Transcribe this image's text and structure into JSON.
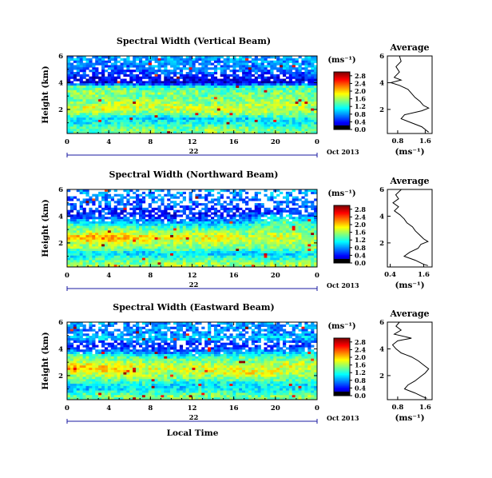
{
  "chart_data": [
    {
      "type": "heatmap",
      "title": "Spectral Width (Vertical Beam)",
      "ylabel": "Height (km)",
      "x_ticks": [
        "0",
        "4",
        "8",
        "12",
        "16",
        "20",
        "0"
      ],
      "xlim": [
        0,
        24
      ],
      "y_ticks": [
        "2",
        "4",
        "6"
      ],
      "ylim": [
        0.2,
        6
      ],
      "day_label": "22",
      "month_label": "Oct 2013",
      "colorbar": {
        "unit": "(ms⁻¹)",
        "ticks": [
          "0.0",
          "0.4",
          "0.8",
          "1.2",
          "1.6",
          "2.0",
          "2.4",
          "2.8"
        ],
        "range": [
          0,
          3.0
        ]
      },
      "noise_seed": 11,
      "rows": [
        {
          "h": 6.0,
          "v": [
            0.9,
            0.9,
            0.9,
            0.9,
            0.9,
            0.9,
            0.9,
            0.9
          ],
          "gap": 0.15
        },
        {
          "h": 5.5,
          "v": [
            0.8,
            0.7,
            0.8,
            0.8,
            0.7,
            0.8,
            0.8,
            0.8
          ],
          "gap": 0.15
        },
        {
          "h": 5.0,
          "v": [
            0.9,
            0.6,
            0.7,
            0.8,
            0.8,
            0.7,
            0.8,
            0.9
          ],
          "gap": 0.15
        },
        {
          "h": 4.6,
          "v": [
            0.5,
            0.4,
            0.5,
            0.6,
            0.5,
            0.5,
            0.5,
            0.6
          ],
          "gap": 0.25
        },
        {
          "h": 4.3,
          "v": [
            0.3,
            0.3,
            0.4,
            0.4,
            0.3,
            0.4,
            0.3,
            0.4
          ],
          "gap": 0.2
        },
        {
          "h": 4.0,
          "v": [
            0.2,
            0.2,
            0.3,
            0.2,
            0.3,
            0.2,
            0.3,
            0.3
          ],
          "gap": 0.0
        },
        {
          "h": 3.7,
          "v": [
            1.4,
            1.3,
            1.2,
            1.2,
            1.1,
            1.2,
            1.3,
            1.3
          ],
          "gap": 0.0
        },
        {
          "h": 3.3,
          "v": [
            1.5,
            1.6,
            1.5,
            1.6,
            1.5,
            1.4,
            1.5,
            1.4
          ],
          "gap": 0.0
        },
        {
          "h": 2.9,
          "v": [
            1.4,
            1.5,
            1.4,
            1.5,
            1.4,
            1.5,
            1.6,
            1.4
          ],
          "gap": 0.0
        },
        {
          "h": 2.5,
          "v": [
            1.5,
            1.6,
            1.8,
            1.6,
            1.5,
            1.6,
            1.7,
            1.5
          ],
          "gap": 0.0
        },
        {
          "h": 2.1,
          "v": [
            1.7,
            1.9,
            1.6,
            1.8,
            1.7,
            1.8,
            1.6,
            1.7
          ],
          "gap": 0.0
        },
        {
          "h": 1.7,
          "v": [
            1.5,
            1.6,
            1.4,
            1.5,
            1.7,
            1.6,
            1.5,
            1.6
          ],
          "gap": 0.0
        },
        {
          "h": 1.3,
          "v": [
            1.2,
            1.0,
            1.1,
            0.9,
            1.1,
            1.0,
            1.2,
            1.1
          ],
          "gap": 0.0
        },
        {
          "h": 0.9,
          "v": [
            1.1,
            1.2,
            1.2,
            1.3,
            1.2,
            1.2,
            1.1,
            1.2
          ],
          "gap": 0.0
        },
        {
          "h": 0.5,
          "v": [
            1.3,
            1.4,
            1.5,
            1.4,
            1.6,
            1.5,
            1.4,
            1.5
          ],
          "gap": 0.0
        }
      ],
      "average": {
        "title": "Average",
        "xlabel": "(ms⁻¹)",
        "x_ticks": [
          "0.8",
          "1.6"
        ],
        "xlim": [
          0.5,
          1.8
        ],
        "y_ticks": [
          "2",
          "4",
          "6"
        ],
        "ylim": [
          0.2,
          6
        ],
        "profile": [
          {
            "h": 6.0,
            "v": 0.85
          },
          {
            "h": 5.6,
            "v": 0.9
          },
          {
            "h": 5.2,
            "v": 0.75
          },
          {
            "h": 4.8,
            "v": 0.85
          },
          {
            "h": 4.4,
            "v": 0.7
          },
          {
            "h": 4.2,
            "v": 0.9
          },
          {
            "h": 4.0,
            "v": 0.6
          },
          {
            "h": 3.8,
            "v": 0.85
          },
          {
            "h": 3.5,
            "v": 1.1
          },
          {
            "h": 3.2,
            "v": 1.2
          },
          {
            "h": 2.9,
            "v": 1.3
          },
          {
            "h": 2.6,
            "v": 1.45
          },
          {
            "h": 2.3,
            "v": 1.55
          },
          {
            "h": 2.1,
            "v": 1.7
          },
          {
            "h": 1.9,
            "v": 1.5
          },
          {
            "h": 1.6,
            "v": 1.0
          },
          {
            "h": 1.3,
            "v": 0.9
          },
          {
            "h": 1.0,
            "v": 1.2
          },
          {
            "h": 0.7,
            "v": 1.5
          },
          {
            "h": 0.4,
            "v": 1.65
          },
          {
            "h": 0.3,
            "v": 1.7
          }
        ]
      }
    },
    {
      "type": "heatmap",
      "title": "Spectral Width (Northward Beam)",
      "ylabel": "Height (km)",
      "x_ticks": [
        "0",
        "4",
        "8",
        "12",
        "16",
        "20",
        "0"
      ],
      "xlim": [
        0,
        24
      ],
      "y_ticks": [
        "2",
        "4",
        "6"
      ],
      "ylim": [
        0.2,
        6
      ],
      "day_label": "22",
      "month_label": "Oct 2013",
      "colorbar": {
        "unit": "(ms⁻¹)",
        "ticks": [
          "0.0",
          "0.4",
          "0.8",
          "1.2",
          "1.6",
          "2.0",
          "2.4",
          "2.8"
        ],
        "range": [
          0,
          3.0
        ]
      },
      "noise_seed": 29,
      "rows": [
        {
          "h": 6.0,
          "v": [
            0.8,
            0.9,
            0.8,
            0.9,
            0.9,
            0.8,
            0.9,
            0.9
          ],
          "gap": 0.55
        },
        {
          "h": 5.5,
          "v": [
            0.7,
            0.8,
            0.7,
            0.8,
            0.7,
            0.8,
            0.8,
            0.7
          ],
          "gap": 0.5
        },
        {
          "h": 5.0,
          "v": [
            0.6,
            0.7,
            0.6,
            0.7,
            0.7,
            0.6,
            0.7,
            0.7
          ],
          "gap": 0.45
        },
        {
          "h": 4.6,
          "v": [
            0.5,
            0.6,
            0.5,
            0.5,
            0.6,
            0.5,
            0.6,
            0.5
          ],
          "gap": 0.35
        },
        {
          "h": 4.3,
          "v": [
            0.4,
            0.5,
            0.4,
            0.5,
            0.4,
            0.5,
            0.4,
            0.5
          ],
          "gap": 0.3
        },
        {
          "h": 4.0,
          "v": [
            0.5,
            0.6,
            0.5,
            0.4,
            0.5,
            0.6,
            1.1,
            0.6
          ],
          "gap": 0.2
        },
        {
          "h": 3.6,
          "v": [
            1.0,
            0.9,
            0.8,
            0.7,
            0.8,
            0.9,
            1.4,
            1.0
          ],
          "gap": 0.05
        },
        {
          "h": 3.2,
          "v": [
            1.5,
            1.4,
            1.3,
            1.3,
            1.2,
            1.3,
            1.5,
            1.3
          ],
          "gap": 0.0
        },
        {
          "h": 2.8,
          "v": [
            1.6,
            1.7,
            1.6,
            1.5,
            1.6,
            1.5,
            1.6,
            1.5
          ],
          "gap": 0.0
        },
        {
          "h": 2.4,
          "v": [
            2.1,
            2.3,
            2.0,
            1.8,
            1.9,
            1.7,
            1.8,
            1.6
          ],
          "gap": 0.0
        },
        {
          "h": 2.0,
          "v": [
            1.7,
            1.8,
            1.7,
            1.6,
            1.7,
            1.6,
            1.7,
            1.6
          ],
          "gap": 0.0
        },
        {
          "h": 1.6,
          "v": [
            1.5,
            1.6,
            1.4,
            1.5,
            1.4,
            1.5,
            1.4,
            1.5
          ],
          "gap": 0.0
        },
        {
          "h": 1.2,
          "v": [
            1.0,
            1.1,
            0.9,
            1.1,
            1.0,
            0.9,
            1.0,
            1.1
          ],
          "gap": 0.0
        },
        {
          "h": 0.8,
          "v": [
            1.2,
            1.3,
            1.4,
            1.3,
            1.4,
            1.3,
            1.2,
            1.4
          ],
          "gap": 0.0
        },
        {
          "h": 0.4,
          "v": [
            1.5,
            1.6,
            1.5,
            1.7,
            1.6,
            1.5,
            1.7,
            1.6
          ],
          "gap": 0.0
        }
      ],
      "average": {
        "title": "Average",
        "xlabel": "(ms⁻¹)",
        "x_ticks": [
          "0.4",
          "1.6"
        ],
        "xlim": [
          0.3,
          1.9
        ],
        "y_ticks": [
          "2",
          "4",
          "6"
        ],
        "ylim": [
          0.2,
          6
        ],
        "profile": [
          {
            "h": 6.0,
            "v": 0.8
          },
          {
            "h": 5.6,
            "v": 0.6
          },
          {
            "h": 5.3,
            "v": 0.7
          },
          {
            "h": 5.0,
            "v": 0.5
          },
          {
            "h": 4.7,
            "v": 0.7
          },
          {
            "h": 4.4,
            "v": 0.55
          },
          {
            "h": 4.1,
            "v": 0.75
          },
          {
            "h": 3.8,
            "v": 0.9
          },
          {
            "h": 3.5,
            "v": 1.0
          },
          {
            "h": 3.2,
            "v": 1.2
          },
          {
            "h": 2.9,
            "v": 1.3
          },
          {
            "h": 2.6,
            "v": 1.45
          },
          {
            "h": 2.3,
            "v": 1.6
          },
          {
            "h": 2.1,
            "v": 1.75
          },
          {
            "h": 1.9,
            "v": 1.5
          },
          {
            "h": 1.6,
            "v": 1.4
          },
          {
            "h": 1.3,
            "v": 1.1
          },
          {
            "h": 1.0,
            "v": 0.9
          },
          {
            "h": 0.7,
            "v": 1.3
          },
          {
            "h": 0.4,
            "v": 1.6
          },
          {
            "h": 0.3,
            "v": 1.75
          }
        ]
      }
    },
    {
      "type": "heatmap",
      "title": "Spectral Width (Eastward Beam)",
      "ylabel": "Height (km)",
      "x_ticks": [
        "0",
        "4",
        "8",
        "12",
        "16",
        "20",
        "0"
      ],
      "xlim": [
        0,
        24
      ],
      "y_ticks": [
        "2",
        "4",
        "6"
      ],
      "ylim": [
        0.2,
        6
      ],
      "day_label": "22",
      "month_label": "Oct 2013",
      "time_label": "Local Time",
      "colorbar": {
        "unit": "(ms⁻¹)",
        "ticks": [
          "0.0",
          "0.4",
          "0.8",
          "1.2",
          "1.6",
          "2.0",
          "2.4",
          "2.8"
        ],
        "range": [
          0,
          3.0
        ]
      },
      "noise_seed": 47,
      "rows": [
        {
          "h": 6.0,
          "v": [
            0.9,
            0.8,
            0.9,
            0.8,
            0.9,
            0.8,
            0.9,
            0.9
          ],
          "gap": 0.3
        },
        {
          "h": 5.5,
          "v": [
            0.7,
            0.8,
            0.7,
            0.8,
            0.7,
            0.8,
            0.7,
            0.8
          ],
          "gap": 0.3
        },
        {
          "h": 5.1,
          "v": [
            0.8,
            0.7,
            0.8,
            0.7,
            0.8,
            0.7,
            0.8,
            0.7
          ],
          "gap": 0.25
        },
        {
          "h": 4.8,
          "v": [
            1.0,
            1.1,
            1.0,
            1.0,
            1.1,
            1.0,
            1.1,
            1.0
          ],
          "gap": 0.05
        },
        {
          "h": 4.5,
          "v": [
            0.6,
            0.5,
            0.6,
            0.5,
            0.6,
            0.6,
            0.5,
            0.6
          ],
          "gap": 0.4
        },
        {
          "h": 4.2,
          "v": [
            0.5,
            0.4,
            0.5,
            0.4,
            0.5,
            0.4,
            0.5,
            0.5
          ],
          "gap": 0.35
        },
        {
          "h": 3.8,
          "v": [
            0.9,
            0.8,
            0.7,
            0.6,
            0.8,
            0.9,
            0.8,
            0.9
          ],
          "gap": 0.05
        },
        {
          "h": 3.4,
          "v": [
            1.5,
            1.4,
            1.3,
            1.2,
            1.3,
            1.4,
            1.3,
            1.4
          ],
          "gap": 0.0
        },
        {
          "h": 3.0,
          "v": [
            1.6,
            1.7,
            1.6,
            1.5,
            1.6,
            1.5,
            1.7,
            1.6
          ],
          "gap": 0.0
        },
        {
          "h": 2.6,
          "v": [
            2.2,
            2.0,
            1.8,
            1.7,
            1.8,
            1.7,
            1.8,
            1.7
          ],
          "gap": 0.0
        },
        {
          "h": 2.2,
          "v": [
            1.8,
            1.9,
            1.7,
            1.6,
            1.8,
            1.9,
            1.7,
            1.6
          ],
          "gap": 0.0
        },
        {
          "h": 1.8,
          "v": [
            1.4,
            1.5,
            1.6,
            1.5,
            1.4,
            1.6,
            1.5,
            1.4
          ],
          "gap": 0.0
        },
        {
          "h": 1.4,
          "v": [
            1.2,
            1.1,
            1.2,
            1.0,
            1.1,
            1.0,
            1.2,
            1.1
          ],
          "gap": 0.0
        },
        {
          "h": 1.0,
          "v": [
            0.9,
            1.0,
            1.1,
            1.0,
            1.2,
            1.0,
            1.1,
            1.0
          ],
          "gap": 0.0
        },
        {
          "h": 0.5,
          "v": [
            1.4,
            1.5,
            1.4,
            1.6,
            1.5,
            1.4,
            1.5,
            1.6
          ],
          "gap": 0.0
        }
      ],
      "average": {
        "title": "Average",
        "xlabel": "(ms⁻¹)",
        "x_ticks": [
          "0.8",
          "1.6"
        ],
        "xlim": [
          0.5,
          1.8
        ],
        "y_ticks": [
          "2",
          "4",
          "6"
        ],
        "ylim": [
          0.2,
          6
        ],
        "profile": [
          {
            "h": 6.0,
            "v": 0.85
          },
          {
            "h": 5.7,
            "v": 0.75
          },
          {
            "h": 5.4,
            "v": 0.9
          },
          {
            "h": 5.1,
            "v": 0.7
          },
          {
            "h": 4.8,
            "v": 1.2
          },
          {
            "h": 4.6,
            "v": 0.8
          },
          {
            "h": 4.3,
            "v": 0.65
          },
          {
            "h": 4.0,
            "v": 0.75
          },
          {
            "h": 3.7,
            "v": 0.9
          },
          {
            "h": 3.4,
            "v": 1.2
          },
          {
            "h": 3.1,
            "v": 1.4
          },
          {
            "h": 2.8,
            "v": 1.55
          },
          {
            "h": 2.5,
            "v": 1.7
          },
          {
            "h": 2.2,
            "v": 1.6
          },
          {
            "h": 1.9,
            "v": 1.45
          },
          {
            "h": 1.6,
            "v": 1.3
          },
          {
            "h": 1.3,
            "v": 1.1
          },
          {
            "h": 1.0,
            "v": 1.0
          },
          {
            "h": 0.7,
            "v": 1.3
          },
          {
            "h": 0.4,
            "v": 1.55
          },
          {
            "h": 0.3,
            "v": 1.65
          }
        ]
      }
    }
  ]
}
